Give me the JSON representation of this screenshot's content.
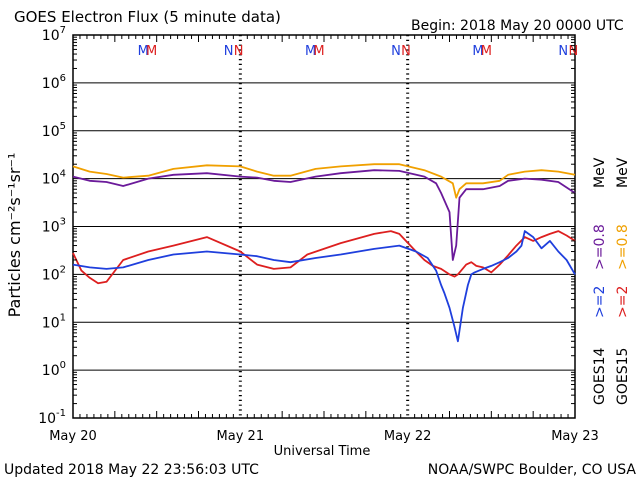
{
  "chart_data": {
    "type": "line",
    "title": "GOES Electron Flux (5 minute data)",
    "begin_label": "Begin: 2018 May 20 0000 UTC",
    "xlabel": "Universal Time",
    "ylabel": "Particles cm⁻²s⁻¹sr⁻¹",
    "x_tick_labels": [
      "May 20",
      "May 21",
      "May 22",
      "May 23"
    ],
    "xlim_days": [
      0,
      3
    ],
    "ylim_log10": [
      -1,
      7
    ],
    "y_tick_exponents": [
      -1,
      0,
      1,
      2,
      3,
      4,
      5,
      6,
      7
    ],
    "alert_threshold": 1000,
    "markers": [
      {
        "text": "M",
        "day": 0.42,
        "color": "#1f3fdd"
      },
      {
        "text": "M",
        "day": 0.47,
        "color": "#dd1f1f"
      },
      {
        "text": "N",
        "day": 0.93,
        "color": "#1f3fdd"
      },
      {
        "text": "N",
        "day": 0.99,
        "color": "#dd1f1f"
      },
      {
        "text": "M",
        "day": 1.42,
        "color": "#1f3fdd"
      },
      {
        "text": "M",
        "day": 1.47,
        "color": "#dd1f1f"
      },
      {
        "text": "N",
        "day": 1.93,
        "color": "#1f3fdd"
      },
      {
        "text": "N",
        "day": 1.99,
        "color": "#dd1f1f"
      },
      {
        "text": "M",
        "day": 2.42,
        "color": "#1f3fdd"
      },
      {
        "text": "M",
        "day": 2.47,
        "color": "#dd1f1f"
      },
      {
        "text": "N",
        "day": 2.93,
        "color": "#1f3fdd"
      },
      {
        "text": "N",
        "day": 2.99,
        "color": "#dd1f1f"
      }
    ],
    "legend": {
      "goes14_label": "GOES14",
      "goes15_label": "GOES15",
      "g14_ge2": ">=2",
      "g14_ge08": ">=0.8",
      "g15_ge2": ">=2",
      "g15_ge08": ">=0.8",
      "unit": "MeV"
    },
    "series": [
      {
        "name": ">=0.8 MeV GOES15",
        "color": "#f0a000",
        "x": [
          0,
          0.1,
          0.2,
          0.3,
          0.45,
          0.6,
          0.8,
          1.0,
          1.1,
          1.2,
          1.3,
          1.45,
          1.6,
          1.8,
          1.95,
          2.1,
          2.2,
          2.27,
          2.29,
          2.31,
          2.35,
          2.45,
          2.55,
          2.6,
          2.7,
          2.8,
          2.9,
          3.0
        ],
        "y": [
          18000,
          14000,
          12500,
          10500,
          11500,
          16000,
          19000,
          18000,
          14000,
          11500,
          11500,
          16000,
          18000,
          20000,
          20000,
          15000,
          11000,
          8000,
          4000,
          6000,
          8000,
          8000,
          9000,
          12000,
          14000,
          15000,
          14000,
          12000
        ]
      },
      {
        "name": ">=0.8 MeV GOES14",
        "color": "#6b1a9a",
        "x": [
          0,
          0.1,
          0.2,
          0.3,
          0.45,
          0.6,
          0.8,
          1.0,
          1.1,
          1.2,
          1.3,
          1.45,
          1.6,
          1.8,
          1.95,
          2.1,
          2.17,
          2.2,
          2.25,
          2.27,
          2.29,
          2.31,
          2.35,
          2.45,
          2.55,
          2.6,
          2.7,
          2.8,
          2.9,
          3.0
        ],
        "y": [
          11000,
          9000,
          8500,
          7000,
          10000,
          12000,
          13000,
          11000,
          10500,
          9000,
          8500,
          11000,
          13000,
          15000,
          14500,
          11000,
          8000,
          5000,
          2000,
          200,
          400,
          4000,
          6000,
          6000,
          7000,
          9000,
          10000,
          9500,
          8500,
          5000
        ]
      },
      {
        "name": ">=2 MeV GOES15",
        "color": "#dd1f1f",
        "x": [
          0,
          0.05,
          0.1,
          0.15,
          0.2,
          0.3,
          0.45,
          0.6,
          0.8,
          1.0,
          1.1,
          1.2,
          1.3,
          1.4,
          1.6,
          1.8,
          1.9,
          1.95,
          2.05,
          2.1,
          2.15,
          2.2,
          2.25,
          2.28,
          2.3,
          2.35,
          2.38,
          2.41,
          2.45,
          2.5,
          2.55,
          2.6,
          2.65,
          2.7,
          2.75,
          2.8,
          2.85,
          2.9,
          2.95,
          3.0
        ],
        "y": [
          280,
          120,
          85,
          65,
          70,
          200,
          300,
          400,
          600,
          300,
          160,
          130,
          140,
          260,
          450,
          700,
          800,
          700,
          300,
          200,
          150,
          130,
          100,
          90,
          100,
          160,
          180,
          150,
          140,
          110,
          160,
          250,
          400,
          600,
          500,
          600,
          700,
          800,
          650,
          500
        ]
      },
      {
        "name": ">=2 MeV GOES14",
        "color": "#1f3fdd",
        "x": [
          0,
          0.1,
          0.2,
          0.3,
          0.45,
          0.6,
          0.8,
          1.0,
          1.1,
          1.2,
          1.3,
          1.45,
          1.6,
          1.8,
          1.95,
          2.05,
          2.12,
          2.17,
          2.2,
          2.22,
          2.25,
          2.28,
          2.3,
          2.33,
          2.36,
          2.38,
          2.4,
          2.45,
          2.5,
          2.55,
          2.6,
          2.65,
          2.68,
          2.7,
          2.75,
          2.8,
          2.85,
          2.9,
          2.95,
          3.0
        ],
        "y": [
          160,
          140,
          130,
          140,
          200,
          260,
          300,
          260,
          240,
          200,
          180,
          220,
          260,
          340,
          400,
          300,
          220,
          120,
          60,
          40,
          20,
          8,
          4,
          20,
          60,
          100,
          110,
          130,
          150,
          180,
          220,
          300,
          400,
          800,
          600,
          350,
          500,
          300,
          200,
          100
        ]
      }
    ],
    "footer_left": "Updated 2018 May 22 23:56:03 UTC",
    "footer_right": "NOAA/SWPC Boulder, CO USA"
  }
}
